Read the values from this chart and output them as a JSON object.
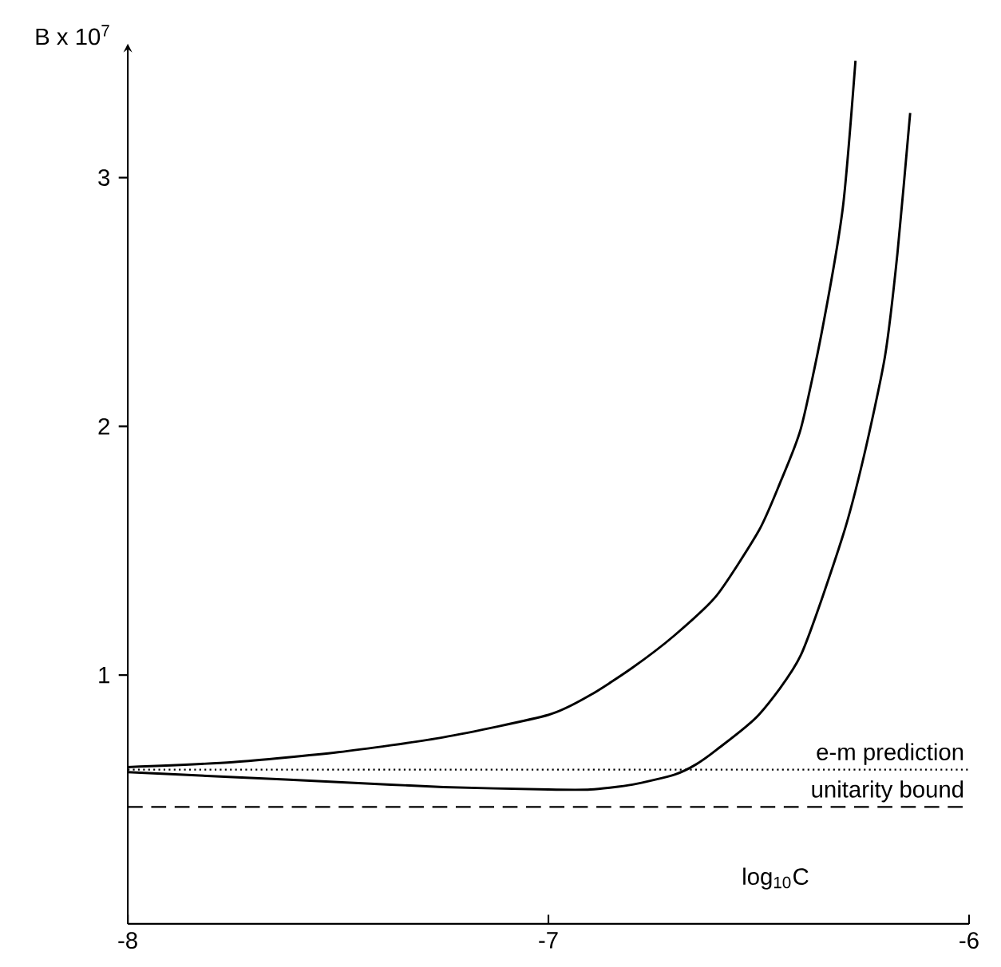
{
  "chart_data": {
    "type": "line",
    "xlabel": "log$_{10}$C",
    "ylabel": "B x 10$^{7}$",
    "xlim": [
      -8,
      -6
    ],
    "ylim": [
      0,
      3.5
    ],
    "xticks": [
      -8,
      -7,
      -6
    ],
    "yticks": [
      1,
      2,
      3
    ],
    "grid": false,
    "marker": "none",
    "line_style": "solid",
    "series": [
      {
        "color": "#000000",
        "x": [
          -8,
          -7.75,
          -7.5,
          -7.25,
          -7,
          -6.9,
          -6.8,
          -6.7,
          -6.6,
          -6.5,
          -6.45,
          -6.4,
          -6.35,
          -6.3,
          -6.27
        ],
        "values": [
          0.63,
          0.65,
          0.69,
          0.75,
          0.84,
          0.92,
          1.03,
          1.16,
          1.32,
          1.58,
          1.77,
          1.99,
          2.38,
          2.88,
          3.47
        ]
      },
      {
        "color": "#000000",
        "x": [
          -8,
          -7.75,
          -7.5,
          -7.25,
          -7,
          -6.9,
          -6.8,
          -6.7,
          -6.65,
          -6.6,
          -6.5,
          -6.4,
          -6.3,
          -6.25,
          -6.2,
          -6.17,
          -6.14
        ],
        "values": [
          0.61,
          0.59,
          0.57,
          0.55,
          0.54,
          0.54,
          0.56,
          0.6,
          0.64,
          0.7,
          0.84,
          1.08,
          1.56,
          1.88,
          2.28,
          2.7,
          3.26
        ]
      }
    ],
    "ref_lines": [
      {
        "axis": "y",
        "value": 0.62,
        "label": "e-m prediction",
        "line_style": "dotted",
        "color": "#000000"
      },
      {
        "axis": "y",
        "value": 0.47,
        "label": "unitarity bound",
        "line_style": "dashed",
        "color": "#000000"
      }
    ]
  }
}
